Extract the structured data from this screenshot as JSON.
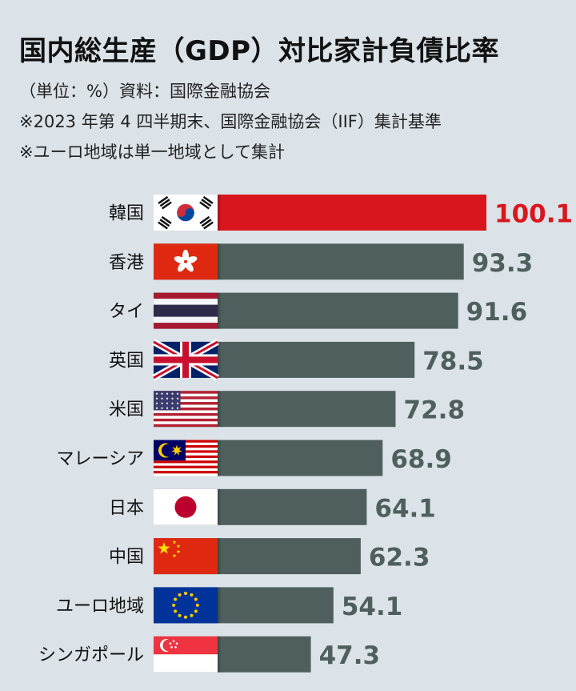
{
  "header": {
    "title": "国内総生産（GDP）対比家計負債比率",
    "notes": [
      "（単位：%）資料：国際金融協会",
      "※2023 年第 4 四半期末、国際金融協会（IIF）集計基準",
      "※ユーロ地域は単一地域として集計"
    ]
  },
  "chart_data": {
    "type": "bar",
    "orientation": "horizontal",
    "title": "国内総生産（GDP）対比家計負債比率",
    "categories": [
      "韓国",
      "香港",
      "タイ",
      "英国",
      "米国",
      "マレーシア",
      "日本",
      "中国",
      "ユーロ地域",
      "シンガポール"
    ],
    "values": [
      100.1,
      93.3,
      91.6,
      78.5,
      72.8,
      68.9,
      64.1,
      62.3,
      54.1,
      47.3
    ],
    "value_labels": [
      "100.1",
      "93.3",
      "91.6",
      "78.5",
      "72.8",
      "68.9",
      "64.1",
      "62.3",
      "54.1",
      "47.3"
    ],
    "flags": [
      "korea-flag",
      "hong-kong-flag",
      "thailand-flag",
      "uk-flag",
      "usa-flag",
      "malaysia-flag",
      "japan-flag",
      "china-flag",
      "eu-flag",
      "singapore-flag"
    ],
    "highlight_index": 0,
    "colors": {
      "bar": "#4e5f5d",
      "highlight": "#d9161d",
      "label": "#4e5f5d",
      "highlight_label": "#d9161d"
    },
    "xlim": [
      0,
      100.1
    ],
    "grid": false,
    "legend": "none"
  }
}
